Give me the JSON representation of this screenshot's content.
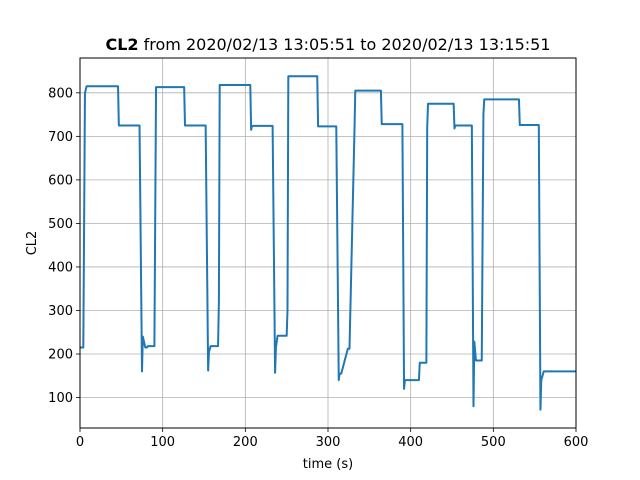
{
  "chart_data": {
    "type": "line",
    "title_bold": "CL2",
    "title_rest": " from 2020/02/13 13:05:51 to 2020/02/13 13:15:51",
    "xlabel": "time (s)",
    "ylabel": "CL2",
    "xlim": [
      0,
      600
    ],
    "ylim": [
      30,
      880
    ],
    "xticks": [
      0,
      100,
      200,
      300,
      400,
      500,
      600
    ],
    "yticks": [
      100,
      200,
      300,
      400,
      500,
      600,
      700,
      800
    ],
    "grid": true,
    "line_color": "#1f77b4",
    "series": [
      {
        "x": [
          0,
          4,
          6,
          8,
          46,
          47,
          72,
          75,
          76,
          79,
          81,
          82,
          90,
          92,
          126,
          127,
          152,
          155,
          156,
          158,
          167,
          168,
          169,
          206,
          207,
          208,
          233,
          236,
          237,
          239,
          250,
          251,
          252,
          287,
          288,
          310,
          313,
          314,
          316,
          324,
          326,
          332,
          333,
          364,
          365,
          390,
          392,
          393,
          410,
          411,
          419,
          420,
          421,
          452,
          453,
          454,
          474,
          476,
          477,
          479,
          486,
          488,
          489,
          531,
          532,
          555,
          557,
          558,
          561,
          600
        ],
        "y": [
          215,
          215,
          800,
          815,
          815,
          725,
          725,
          160,
          240,
          215,
          215,
          218,
          218,
          813,
          813,
          725,
          725,
          162,
          205,
          218,
          218,
          320,
          818,
          818,
          715,
          724,
          724,
          157,
          215,
          242,
          242,
          300,
          838,
          838,
          723,
          723,
          140,
          155,
          155,
          212,
          212,
          712,
          805,
          805,
          728,
          728,
          120,
          140,
          140,
          180,
          180,
          720,
          775,
          775,
          718,
          725,
          725,
          80,
          228,
          185,
          185,
          750,
          785,
          785,
          726,
          726,
          72,
          140,
          160,
          160
        ]
      }
    ]
  }
}
